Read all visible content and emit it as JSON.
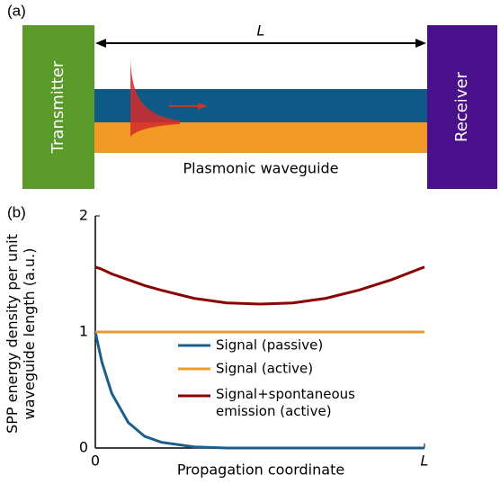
{
  "panel_a": {
    "label": "(a)",
    "transmitter": "Transmitter",
    "receiver": "Receiver",
    "length_label": "L",
    "waveguide_label": "Plasmonic waveguide"
  },
  "chart_data": {
    "type": "line",
    "label": "(b)",
    "xlabel": "Propagation coordinate",
    "ylabel": "SPP energy density per unit waveguide length (a.u.)",
    "x": [
      0,
      0.02,
      0.05,
      0.1,
      0.15,
      0.2,
      0.3,
      0.4,
      0.5,
      0.6,
      0.7,
      0.8,
      0.9,
      1
    ],
    "xlim": [
      0,
      1
    ],
    "xticks": [
      0,
      {
        "value": 1,
        "label": "L"
      }
    ],
    "ylim": [
      0,
      2
    ],
    "yticks": [
      0,
      1,
      2
    ],
    "series": [
      {
        "name": "Signal (passive)",
        "color": "#1b5e8a",
        "values": [
          1,
          0.74,
          0.47,
          0.22,
          0.1,
          0.05,
          0.01,
          0,
          0,
          0,
          0,
          0,
          0,
          0
        ]
      },
      {
        "name": "Signal (active)",
        "color": "#f39a26",
        "values": [
          1,
          1,
          1,
          1,
          1,
          1,
          1,
          1,
          1,
          1,
          1,
          1,
          1,
          1
        ]
      },
      {
        "name": "Signal+spontaneous emission (active)",
        "color": "#8b0000",
        "values": [
          1.56,
          1.54,
          1.5,
          1.45,
          1.4,
          1.36,
          1.29,
          1.25,
          1.24,
          1.25,
          1.29,
          1.36,
          1.45,
          1.56
        ]
      }
    ]
  }
}
